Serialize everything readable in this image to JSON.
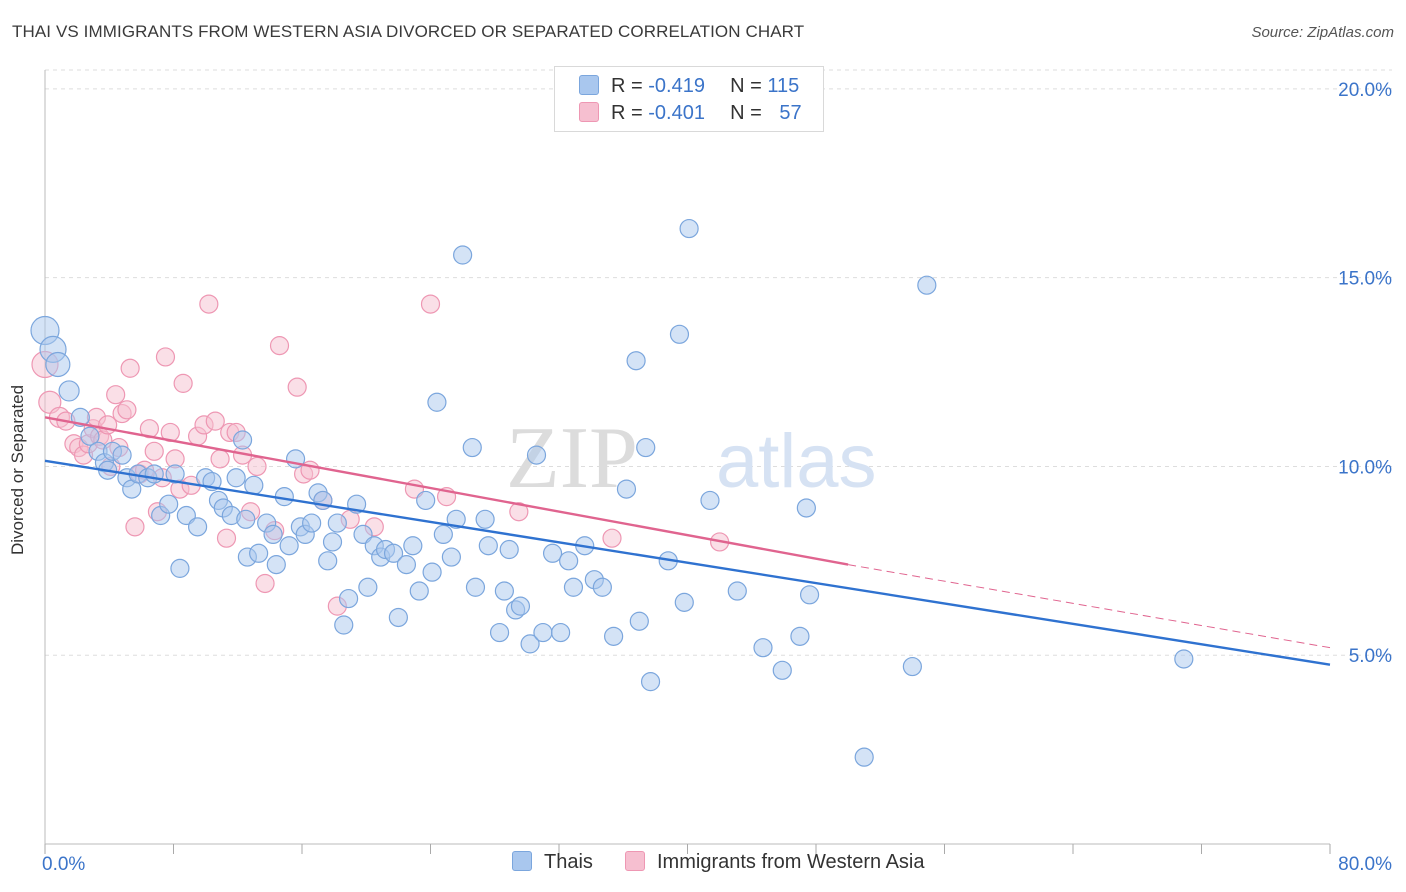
{
  "title": "THAI VS IMMIGRANTS FROM WESTERN ASIA DIVORCED OR SEPARATED CORRELATION CHART",
  "source": "Source: ZipAtlas.com",
  "watermark": {
    "zip": "ZIP",
    "atlas": "atlas"
  },
  "legend": {
    "r_label": "R =",
    "n_label": "N =",
    "rows": [
      {
        "r": "-0.419",
        "n": "115"
      },
      {
        "r": "-0.401",
        "n": "57"
      }
    ]
  },
  "colors": {
    "blue_fill": "#a9c7ee",
    "blue_stroke": "#7ba6dd",
    "blue_line": "#2f72d0",
    "pink_fill": "#f6bfd0",
    "pink_stroke": "#ee97b3",
    "pink_line": "#e0648f",
    "grid": "#dddddd",
    "tick_text": "#3b74c9"
  },
  "chart_data": {
    "type": "scatter",
    "title": "THAI VS IMMIGRANTS FROM WESTERN ASIA DIVORCED OR SEPARATED CORRELATION CHART",
    "xlabel": "",
    "ylabel": "Divorced or Separated",
    "xlim": [
      0,
      80
    ],
    "ylim": [
      0,
      20.5
    ],
    "y_ticks": [
      5,
      10,
      15,
      20
    ],
    "y_tick_labels": [
      "5.0%",
      "10.0%",
      "15.0%",
      "20.0%"
    ],
    "x_tick_labels": [
      "0.0%",
      "80.0%"
    ],
    "grid": true,
    "legend_position": "top-center",
    "series": [
      {
        "name": "Thais",
        "trend": {
          "x": [
            0,
            80
          ],
          "y": [
            10.15,
            4.75
          ]
        },
        "points": [
          [
            0,
            13.6,
            14
          ],
          [
            0.5,
            13.1,
            13
          ],
          [
            0.8,
            12.7,
            12
          ],
          [
            1.5,
            12.0,
            10
          ],
          [
            2.2,
            11.3,
            9
          ],
          [
            2.8,
            10.8,
            9
          ],
          [
            3.3,
            10.4,
            9
          ],
          [
            3.7,
            10.1,
            9
          ],
          [
            3.9,
            9.9,
            9
          ],
          [
            4.2,
            10.4,
            9
          ],
          [
            4.8,
            10.3,
            9
          ],
          [
            5.1,
            9.7,
            9
          ],
          [
            5.4,
            9.4,
            9
          ],
          [
            5.8,
            9.8,
            9
          ],
          [
            6.4,
            9.7,
            9
          ],
          [
            6.8,
            9.8,
            9
          ],
          [
            7.2,
            8.7,
            9
          ],
          [
            7.7,
            9.0,
            9
          ],
          [
            8.1,
            9.8,
            9
          ],
          [
            8.4,
            7.3,
            9
          ],
          [
            8.8,
            8.7,
            9
          ],
          [
            9.5,
            8.4,
            9
          ],
          [
            10.0,
            9.7,
            9
          ],
          [
            10.4,
            9.6,
            9
          ],
          [
            10.8,
            9.1,
            9
          ],
          [
            11.1,
            8.9,
            9
          ],
          [
            11.6,
            8.7,
            9
          ],
          [
            11.9,
            9.7,
            9
          ],
          [
            12.3,
            10.7,
            9
          ],
          [
            12.5,
            8.6,
            9
          ],
          [
            12.6,
            7.6,
            9
          ],
          [
            13.0,
            9.5,
            9
          ],
          [
            13.3,
            7.7,
            9
          ],
          [
            13.8,
            8.5,
            9
          ],
          [
            14.2,
            8.2,
            9
          ],
          [
            14.4,
            7.4,
            9
          ],
          [
            14.9,
            9.2,
            9
          ],
          [
            15.2,
            7.9,
            9
          ],
          [
            15.6,
            10.2,
            9
          ],
          [
            15.9,
            8.4,
            9
          ],
          [
            16.2,
            8.2,
            9
          ],
          [
            16.6,
            8.5,
            9
          ],
          [
            17.0,
            9.3,
            9
          ],
          [
            17.3,
            9.1,
            9
          ],
          [
            17.6,
            7.5,
            9
          ],
          [
            17.9,
            8.0,
            9
          ],
          [
            18.2,
            8.5,
            9
          ],
          [
            18.6,
            5.8,
            9
          ],
          [
            18.9,
            6.5,
            9
          ],
          [
            19.4,
            9.0,
            9
          ],
          [
            19.8,
            8.2,
            9
          ],
          [
            20.1,
            6.8,
            9
          ],
          [
            20.5,
            7.9,
            9
          ],
          [
            20.9,
            7.6,
            9
          ],
          [
            21.2,
            7.8,
            9
          ],
          [
            21.7,
            7.7,
            9
          ],
          [
            22.0,
            6.0,
            9
          ],
          [
            22.5,
            7.4,
            9
          ],
          [
            22.9,
            7.9,
            9
          ],
          [
            23.3,
            6.7,
            9
          ],
          [
            23.7,
            9.1,
            9
          ],
          [
            24.1,
            7.2,
            9
          ],
          [
            24.4,
            11.7,
            9
          ],
          [
            24.8,
            8.2,
            9
          ],
          [
            25.3,
            7.6,
            9
          ],
          [
            25.6,
            8.6,
            9
          ],
          [
            26.0,
            15.6,
            9
          ],
          [
            26.6,
            10.5,
            9
          ],
          [
            26.8,
            6.8,
            9
          ],
          [
            27.4,
            8.6,
            9
          ],
          [
            27.6,
            7.9,
            9
          ],
          [
            28.3,
            5.6,
            9
          ],
          [
            28.6,
            6.7,
            9
          ],
          [
            28.9,
            7.8,
            9
          ],
          [
            29.3,
            6.2,
            9
          ],
          [
            29.6,
            6.3,
            9
          ],
          [
            30.2,
            5.3,
            9
          ],
          [
            30.6,
            10.3,
            9
          ],
          [
            31.0,
            5.6,
            9
          ],
          [
            31.6,
            7.7,
            9
          ],
          [
            32.1,
            5.6,
            9
          ],
          [
            32.6,
            7.5,
            9
          ],
          [
            32.9,
            6.8,
            9
          ],
          [
            33.6,
            7.9,
            9
          ],
          [
            34.2,
            7.0,
            9
          ],
          [
            34.7,
            6.8,
            9
          ],
          [
            35.4,
            5.5,
            9
          ],
          [
            36.2,
            9.4,
            9
          ],
          [
            36.8,
            12.8,
            9
          ],
          [
            37.0,
            5.9,
            9
          ],
          [
            37.4,
            10.5,
            9
          ],
          [
            37.7,
            4.3,
            9
          ],
          [
            38.8,
            7.5,
            9
          ],
          [
            39.5,
            13.5,
            9
          ],
          [
            39.8,
            6.4,
            9
          ],
          [
            40.1,
            16.3,
            9
          ],
          [
            41.4,
            9.1,
            9
          ],
          [
            43.1,
            6.7,
            9
          ],
          [
            44.7,
            5.2,
            9
          ],
          [
            45.9,
            4.6,
            9
          ],
          [
            47.0,
            5.5,
            9
          ],
          [
            47.4,
            8.9,
            9
          ],
          [
            47.6,
            6.6,
            9
          ],
          [
            54.0,
            4.7,
            9
          ],
          [
            54.9,
            14.8,
            9
          ],
          [
            51.0,
            2.3,
            9
          ],
          [
            70.9,
            4.9,
            9
          ]
        ]
      },
      {
        "name": "Immigrants from Western Asia",
        "trend": {
          "x": [
            0,
            50
          ],
          "y": [
            11.3,
            7.4
          ]
        },
        "trend_dashed": {
          "x": [
            50,
            80
          ],
          "y": [
            7.4,
            5.2
          ]
        },
        "points": [
          [
            0,
            12.7,
            13
          ],
          [
            0.3,
            11.7,
            11
          ],
          [
            0.9,
            11.3,
            10
          ],
          [
            1.3,
            11.2,
            9
          ],
          [
            1.8,
            10.6,
            9
          ],
          [
            2.1,
            10.5,
            9
          ],
          [
            2.4,
            10.3,
            9
          ],
          [
            2.7,
            10.6,
            9
          ],
          [
            3.0,
            11.0,
            9
          ],
          [
            3.2,
            11.3,
            9
          ],
          [
            3.4,
            10.8,
            9
          ],
          [
            3.6,
            10.7,
            9
          ],
          [
            3.9,
            11.1,
            9
          ],
          [
            4.1,
            10.0,
            9
          ],
          [
            4.4,
            11.9,
            9
          ],
          [
            4.6,
            10.5,
            9
          ],
          [
            4.8,
            11.4,
            9
          ],
          [
            5.1,
            11.5,
            9
          ],
          [
            5.3,
            12.6,
            9
          ],
          [
            5.6,
            8.4,
            9
          ],
          [
            5.9,
            9.8,
            9
          ],
          [
            6.2,
            9.9,
            9
          ],
          [
            6.5,
            11.0,
            9
          ],
          [
            6.8,
            10.4,
            9
          ],
          [
            7.0,
            8.8,
            9
          ],
          [
            7.3,
            9.7,
            9
          ],
          [
            7.5,
            12.9,
            9
          ],
          [
            7.8,
            10.9,
            9
          ],
          [
            8.1,
            10.2,
            9
          ],
          [
            8.4,
            9.4,
            9
          ],
          [
            8.6,
            12.2,
            9
          ],
          [
            9.1,
            9.5,
            9
          ],
          [
            9.5,
            10.8,
            9
          ],
          [
            9.9,
            11.1,
            9
          ],
          [
            10.2,
            14.3,
            9
          ],
          [
            10.6,
            11.2,
            9
          ],
          [
            10.9,
            10.2,
            9
          ],
          [
            11.3,
            8.1,
            9
          ],
          [
            11.5,
            10.9,
            9
          ],
          [
            11.9,
            10.9,
            9
          ],
          [
            12.3,
            10.3,
            9
          ],
          [
            12.8,
            8.8,
            9
          ],
          [
            13.2,
            10.0,
            9
          ],
          [
            13.7,
            6.9,
            9
          ],
          [
            14.3,
            8.3,
            9
          ],
          [
            14.6,
            13.2,
            9
          ],
          [
            15.7,
            12.1,
            9
          ],
          [
            16.1,
            9.8,
            9
          ],
          [
            16.5,
            9.9,
            9
          ],
          [
            17.3,
            9.1,
            9
          ],
          [
            18.2,
            6.3,
            9
          ],
          [
            19.0,
            8.6,
            9
          ],
          [
            20.5,
            8.4,
            9
          ],
          [
            23.0,
            9.4,
            9
          ],
          [
            24.0,
            14.3,
            9
          ],
          [
            25.0,
            9.2,
            9
          ],
          [
            29.5,
            8.8,
            9
          ],
          [
            35.3,
            8.1,
            9
          ],
          [
            42.0,
            8.0,
            9
          ]
        ]
      }
    ]
  }
}
